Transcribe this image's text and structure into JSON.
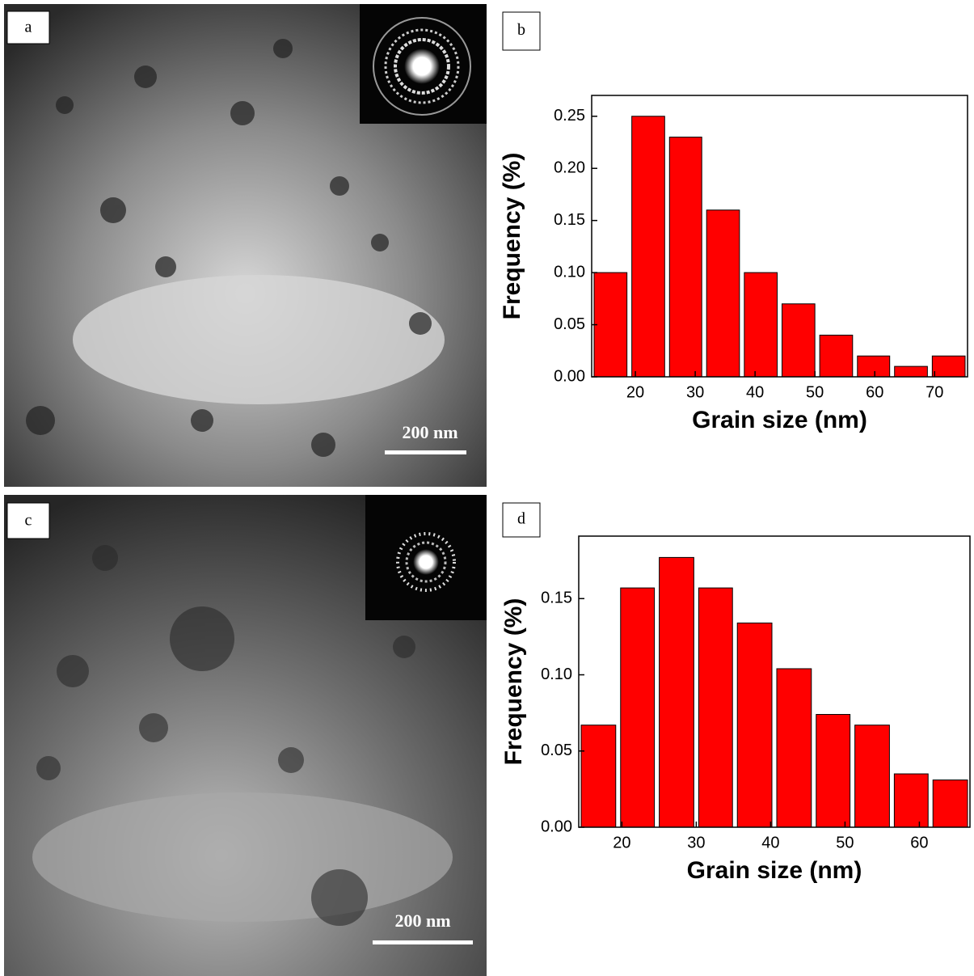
{
  "images": [
    {
      "label": "a",
      "scale_bar": "200 nm"
    },
    {
      "label": "c",
      "scale_bar": "200 nm"
    }
  ],
  "chart_data": [
    {
      "type": "histogram",
      "panel_label": "b",
      "x_label": "Grain size (nm)",
      "y_label": "Frequency (%)",
      "color": "#ff0000",
      "bins": [
        12.7,
        19.0,
        25.3,
        31.5,
        37.8,
        44.1,
        50.4,
        56.7,
        62.9,
        69.2,
        75.5
      ],
      "values": [
        0.1,
        0.25,
        0.23,
        0.16,
        0.1,
        0.07,
        0.04,
        0.02,
        0.01,
        0.02
      ],
      "xlim": [
        12.7,
        75.5
      ],
      "xticks": [
        20,
        30,
        40,
        50,
        60,
        70
      ],
      "ylim": [
        0,
        0.27
      ],
      "yticks": [
        {
          "value": 0,
          "label": "0.00"
        },
        0.05,
        {
          "value": 0.1,
          "label": "0.10"
        },
        0.15,
        {
          "value": 0.2,
          "label": "0.20"
        },
        0.25
      ]
    },
    {
      "type": "histogram",
      "panel_label": "d",
      "x_label": "Grain size (nm)",
      "y_label": "Frequency (%)",
      "color": "#ff0000",
      "bins": [
        14.2,
        19.5,
        24.7,
        30.0,
        35.2,
        40.5,
        45.8,
        51.0,
        56.3,
        61.5,
        66.8
      ],
      "values": [
        0.067,
        0.157,
        0.177,
        0.157,
        0.134,
        0.104,
        0.074,
        0.067,
        0.035,
        0.031
      ],
      "xlim": [
        14.2,
        66.8
      ],
      "xticks": [
        20,
        30,
        40,
        50,
        60
      ],
      "ylim": [
        0,
        0.191
      ],
      "yticks": [
        {
          "value": 0,
          "label": "0.00"
        },
        0.05,
        {
          "value": 0.1,
          "label": "0.10"
        },
        0.15
      ]
    }
  ]
}
